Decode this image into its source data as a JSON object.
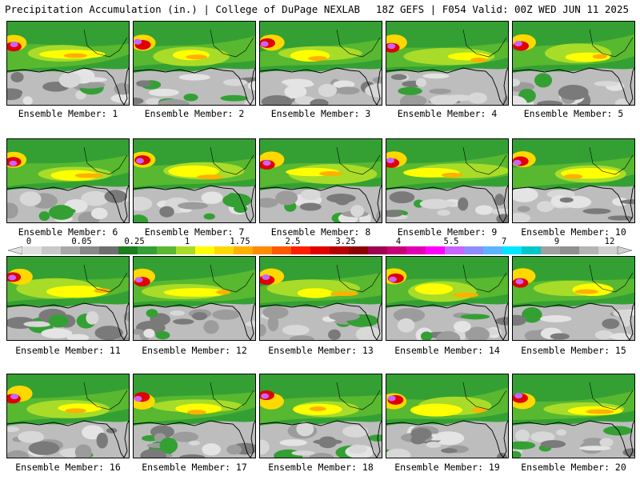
{
  "header": {
    "title_left": "Precipitation Accumulation (in.) | College of DuPage NEXLAB",
    "title_right": "18Z GEFS | F054 Valid: 00Z WED JUN 11 2025"
  },
  "colorbar": {
    "labels": [
      "0",
      "0.05",
      "0.25",
      "1",
      "1.75",
      "2.5",
      "3.25",
      "4",
      "5.5",
      "7",
      "9",
      "12"
    ],
    "colors": [
      "#e0e0e0",
      "#c8c8c8",
      "#a8a8a8",
      "#888888",
      "#6e6e6e",
      "#1e7d1e",
      "#34a034",
      "#58b830",
      "#a8dc28",
      "#ffff00",
      "#ffd800",
      "#ffb000",
      "#ff8c00",
      "#ff5a00",
      "#ff1e00",
      "#e00000",
      "#b40000",
      "#8c0000",
      "#a00050",
      "#c80078",
      "#e000b4",
      "#ff00ff",
      "#c864ff",
      "#8c8cff",
      "#5ab4ff",
      "#00e6ff",
      "#00c8c8",
      "#a0a0a0",
      "#909090",
      "#b4b4b4",
      "#d0d0d0"
    ]
  },
  "members": [
    {
      "label": "Ensemble Member: 1"
    },
    {
      "label": "Ensemble Member: 2"
    },
    {
      "label": "Ensemble Member: 3"
    },
    {
      "label": "Ensemble Member: 4"
    },
    {
      "label": "Ensemble Member: 5"
    },
    {
      "label": "Ensemble Member: 6"
    },
    {
      "label": "Ensemble Member: 7"
    },
    {
      "label": "Ensemble Member: 8"
    },
    {
      "label": "Ensemble Member: 9"
    },
    {
      "label": "Ensemble Member: 10"
    },
    {
      "label": "Ensemble Member: 11"
    },
    {
      "label": "Ensemble Member: 12"
    },
    {
      "label": "Ensemble Member: 13"
    },
    {
      "label": "Ensemble Member: 14"
    },
    {
      "label": "Ensemble Member: 15"
    },
    {
      "label": "Ensemble Member: 16"
    },
    {
      "label": "Ensemble Member: 17"
    },
    {
      "label": "Ensemble Member: 18"
    },
    {
      "label": "Ensemble Member: 19"
    },
    {
      "label": "Ensemble Member: 20"
    }
  ]
}
